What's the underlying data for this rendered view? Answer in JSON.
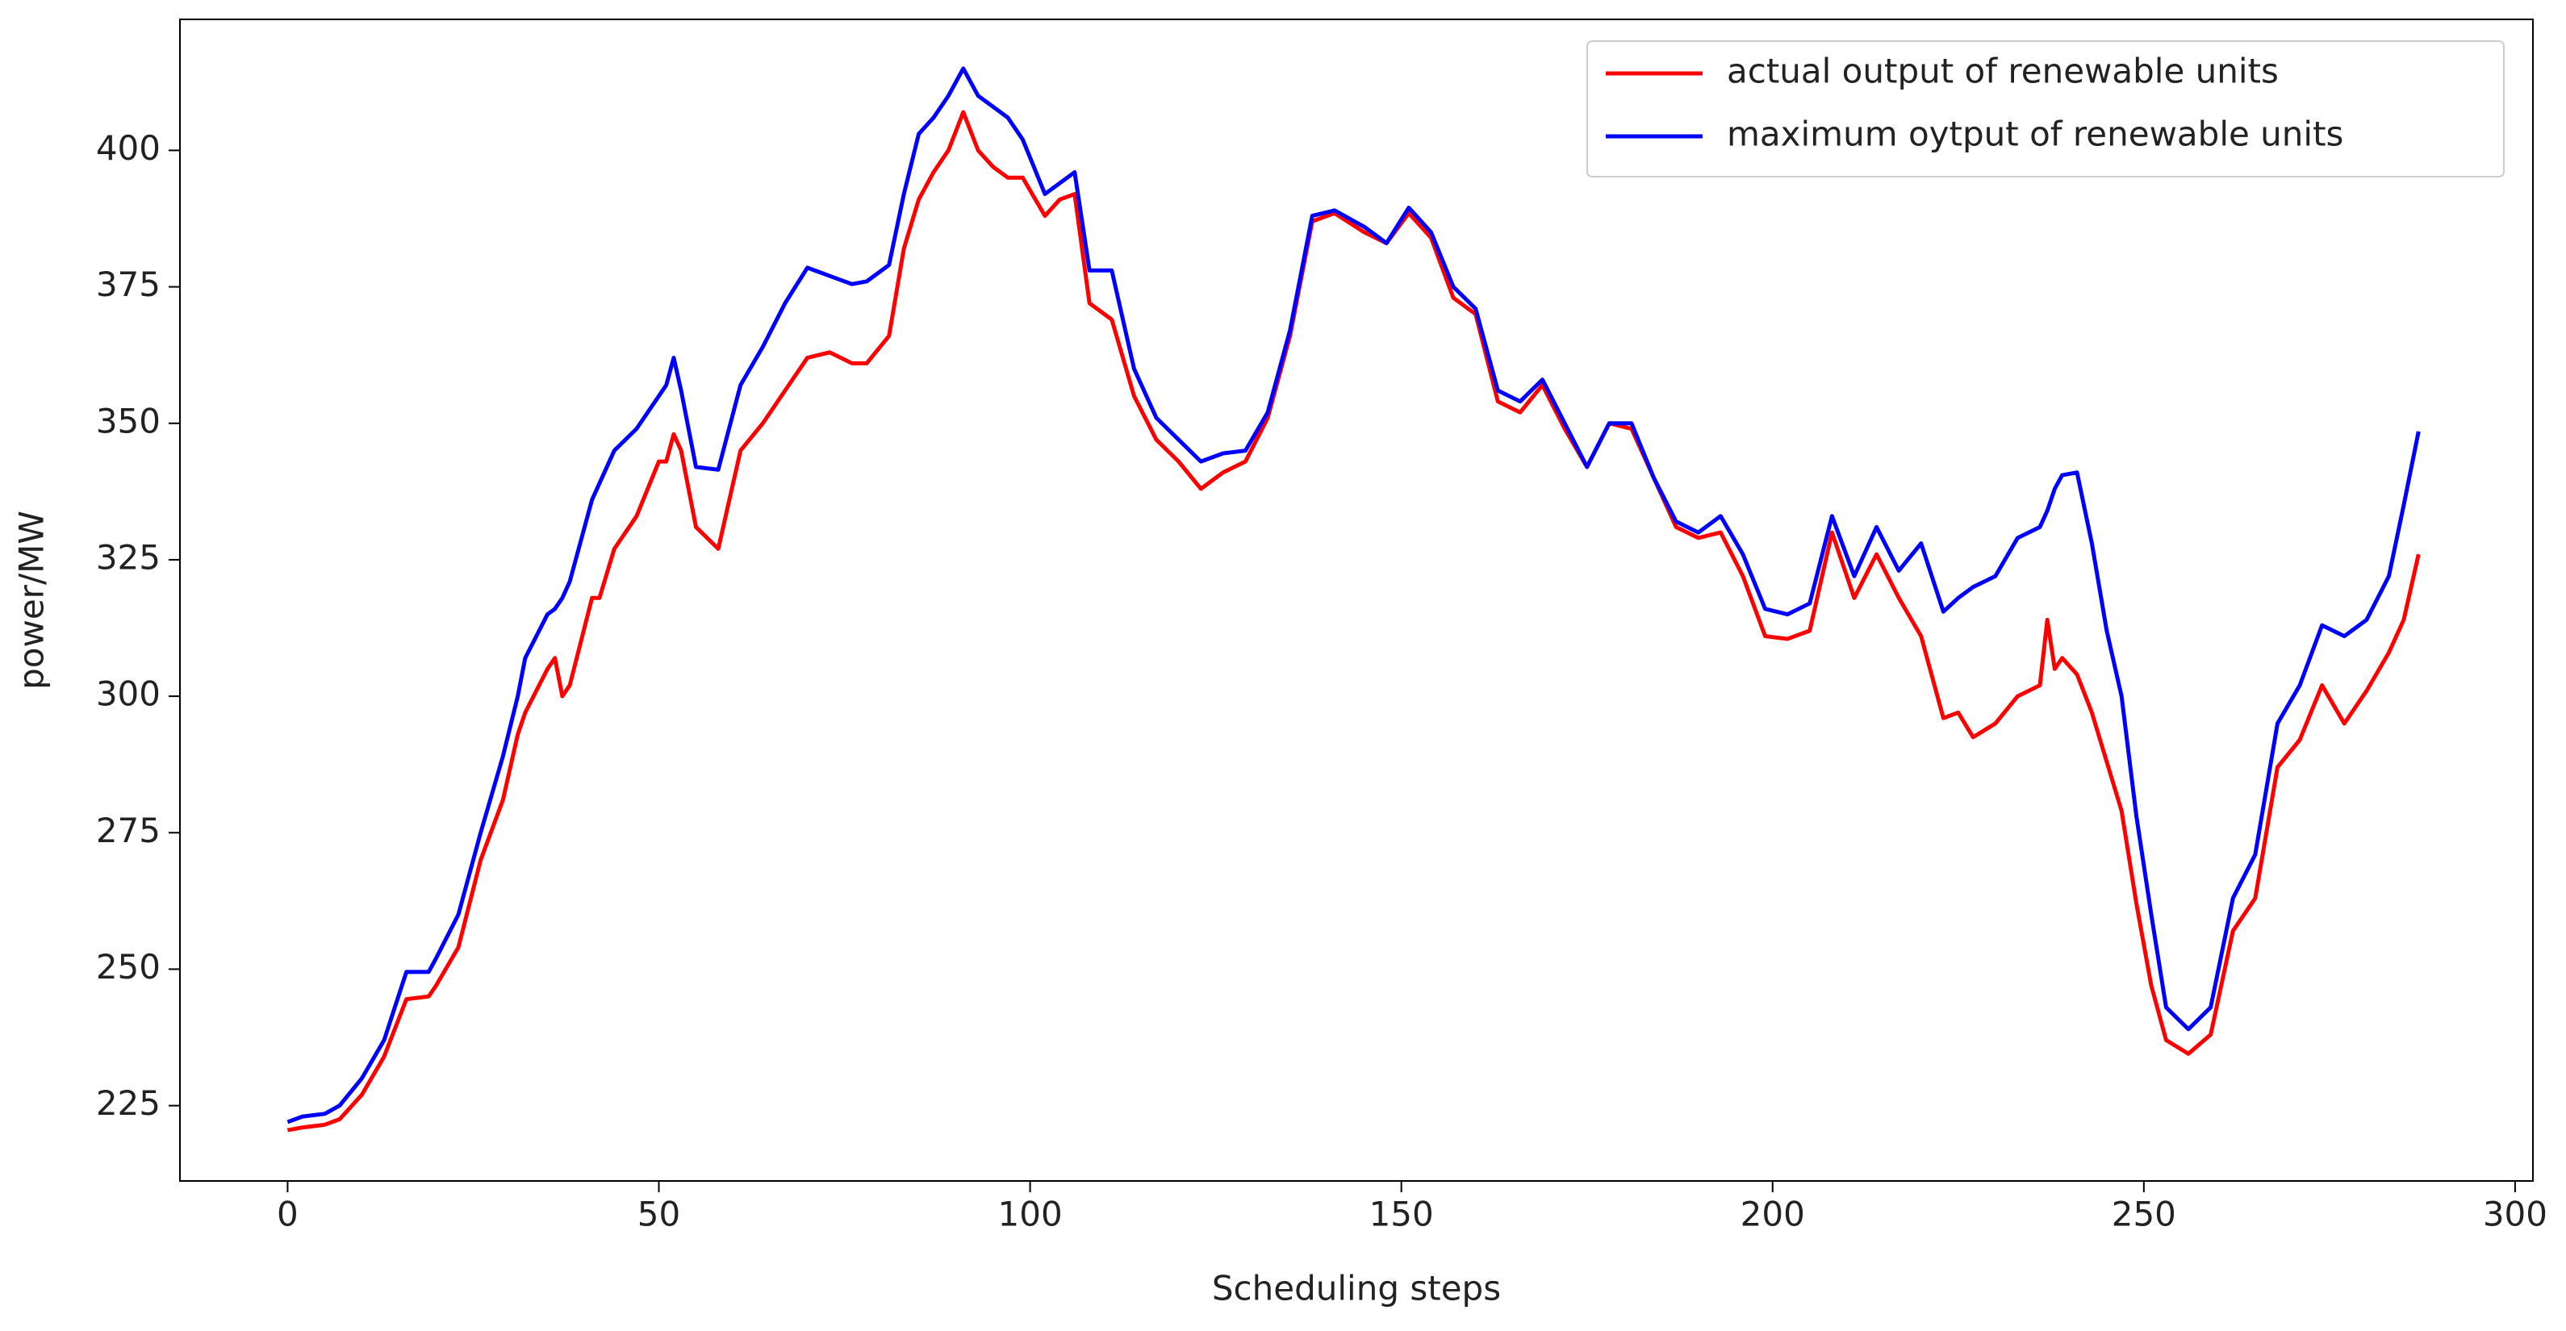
{
  "chart_data": {
    "type": "line",
    "xlabel": "Scheduling steps",
    "ylabel": "power/MW",
    "x": [
      0,
      2,
      5,
      7,
      10,
      13,
      16,
      19,
      20,
      23,
      26,
      29,
      31,
      32,
      35,
      36,
      37,
      38,
      41,
      42,
      44,
      47,
      50,
      51,
      52,
      53,
      55,
      58,
      61,
      64,
      67,
      70,
      73,
      76,
      78,
      81,
      83,
      85,
      87,
      89,
      91,
      93,
      95,
      97,
      99,
      102,
      104,
      106,
      108,
      111,
      114,
      117,
      120,
      123,
      126,
      129,
      132,
      135,
      138,
      141,
      145,
      148,
      151,
      154,
      157,
      160,
      163,
      166,
      169,
      172,
      175,
      178,
      181,
      184,
      187,
      190,
      193,
      196,
      199,
      202,
      205,
      208,
      211,
      214,
      217,
      220,
      223,
      225,
      227,
      230,
      233,
      236,
      237,
      238,
      239,
      241,
      243,
      245,
      247,
      249,
      251,
      253,
      256,
      259,
      262,
      265,
      268,
      271,
      274,
      277,
      280,
      283,
      285,
      287
    ],
    "series": [
      {
        "name": "actual output of renewable units",
        "color": "#ff0000",
        "values": [
          220.5,
          221,
          221.5,
          222.5,
          227,
          234,
          244.5,
          245,
          247,
          254,
          270,
          281,
          293,
          297,
          305,
          307,
          300,
          302,
          318,
          318,
          327,
          333,
          343,
          343,
          348,
          345,
          331,
          327,
          345,
          350,
          356,
          362,
          363,
          361,
          361,
          366,
          382,
          391,
          396,
          400,
          407,
          400,
          397,
          395,
          395,
          388,
          391,
          392,
          372,
          369,
          355,
          347,
          343,
          338,
          341,
          343,
          351,
          366,
          387,
          388.5,
          385,
          383,
          388.5,
          384,
          373,
          370,
          354,
          352,
          357,
          349,
          342,
          350,
          349,
          340,
          331,
          329,
          330,
          322,
          311,
          310.5,
          312,
          330,
          318,
          326,
          318,
          311,
          296,
          297,
          292.5,
          295,
          300,
          302,
          314,
          305,
          307,
          304,
          297,
          288,
          279,
          262,
          247,
          237,
          234.5,
          238,
          257,
          263,
          287,
          292,
          302,
          295,
          301,
          308,
          314,
          326
        ]
      },
      {
        "name": "maximum oytput of renewable units",
        "color": "#0000ff",
        "values": [
          222,
          223,
          223.5,
          225,
          230,
          237,
          249.5,
          249.5,
          252,
          260,
          275,
          289,
          300,
          307,
          315,
          316,
          318,
          321,
          336,
          339,
          345,
          349,
          355,
          357,
          362,
          356,
          342,
          341.5,
          357,
          364,
          372,
          378.5,
          377,
          375.5,
          376,
          379,
          392,
          403,
          406,
          410,
          415,
          410,
          408,
          406,
          402,
          392,
          394,
          396,
          378,
          378,
          360,
          351,
          347,
          343,
          344.5,
          345,
          352,
          367,
          388,
          389,
          386,
          383,
          389.5,
          385,
          375,
          371,
          356,
          354,
          358,
          350,
          342,
          350,
          350,
          340,
          332,
          330,
          333,
          326,
          316,
          315,
          317,
          333,
          322,
          331,
          323,
          328,
          315.5,
          318,
          320,
          322,
          329,
          331,
          334,
          338,
          340.5,
          341,
          328,
          312,
          300,
          278,
          260,
          243,
          239,
          243,
          263,
          271,
          295,
          302,
          313,
          311,
          314,
          322,
          335,
          348.5
        ]
      }
    ],
    "xlim": [
      -14.5,
      302.4
    ],
    "ylim": [
      211.2,
      424
    ],
    "xticks": [
      0,
      50,
      100,
      150,
      200,
      250,
      300
    ],
    "yticks": [
      225,
      250,
      275,
      300,
      325,
      350,
      375,
      400
    ],
    "legend": "upper right"
  }
}
